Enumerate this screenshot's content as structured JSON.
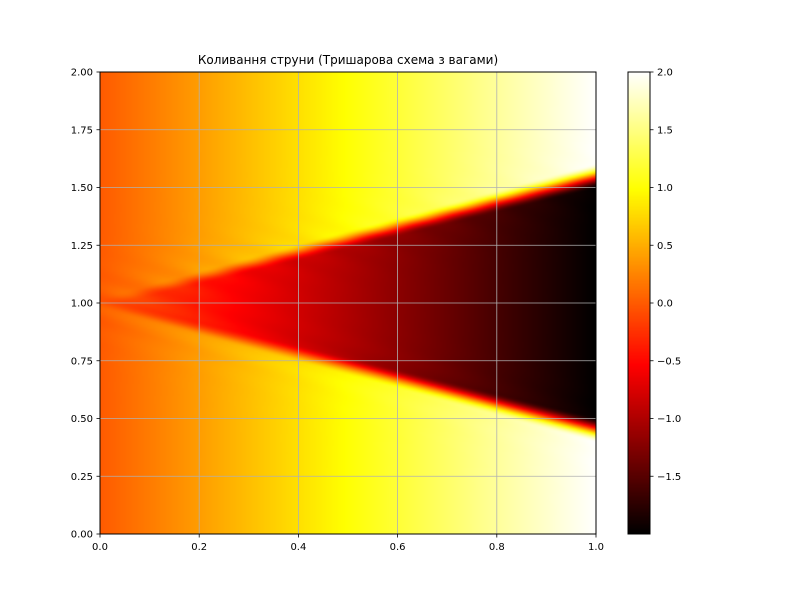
{
  "chart_data": {
    "type": "heatmap",
    "title": "Коливання струни (Тришарова схема з вагами)",
    "xlabel": "",
    "ylabel": "",
    "xlim": [
      0.0,
      1.0
    ],
    "ylim": [
      0.0,
      2.0
    ],
    "x_ticks": [
      "0.0",
      "0.2",
      "0.4",
      "0.6",
      "0.8",
      "1.0"
    ],
    "y_ticks": [
      "0.00",
      "0.25",
      "0.50",
      "0.75",
      "1.00",
      "1.25",
      "1.50",
      "1.75",
      "2.00"
    ],
    "grid": true,
    "colormap": "hot",
    "colorbar": {
      "vmin": -2.0,
      "vmax": 2.0,
      "ticks": [
        "−1.5",
        "−1.0",
        "−0.5",
        "0.0",
        "0.5",
        "1.0",
        "1.5",
        "2.0"
      ]
    },
    "field": {
      "description_values": "u(x,y) = -2x inside wedge |y-1| < 0.55x, 0 along x=0, +2x near top and bottom corners",
      "samples": [
        {
          "x": 0.0,
          "y": 1.0,
          "value": 0.0
        },
        {
          "x": 0.2,
          "y": 1.0,
          "value": -0.4
        },
        {
          "x": 0.4,
          "y": 1.0,
          "value": -0.8
        },
        {
          "x": 0.6,
          "y": 1.0,
          "value": -1.2
        },
        {
          "x": 0.8,
          "y": 1.0,
          "value": -1.6
        },
        {
          "x": 1.0,
          "y": 1.0,
          "value": -2.0
        },
        {
          "x": 0.2,
          "y": 1.75,
          "value": 0.4
        },
        {
          "x": 0.6,
          "y": 1.75,
          "value": 1.2
        },
        {
          "x": 1.0,
          "y": 2.0,
          "value": 2.0
        },
        {
          "x": 0.2,
          "y": 0.25,
          "value": 0.4
        },
        {
          "x": 0.6,
          "y": 0.25,
          "value": 1.2
        },
        {
          "x": 1.0,
          "y": 0.0,
          "value": 2.0
        }
      ]
    }
  }
}
